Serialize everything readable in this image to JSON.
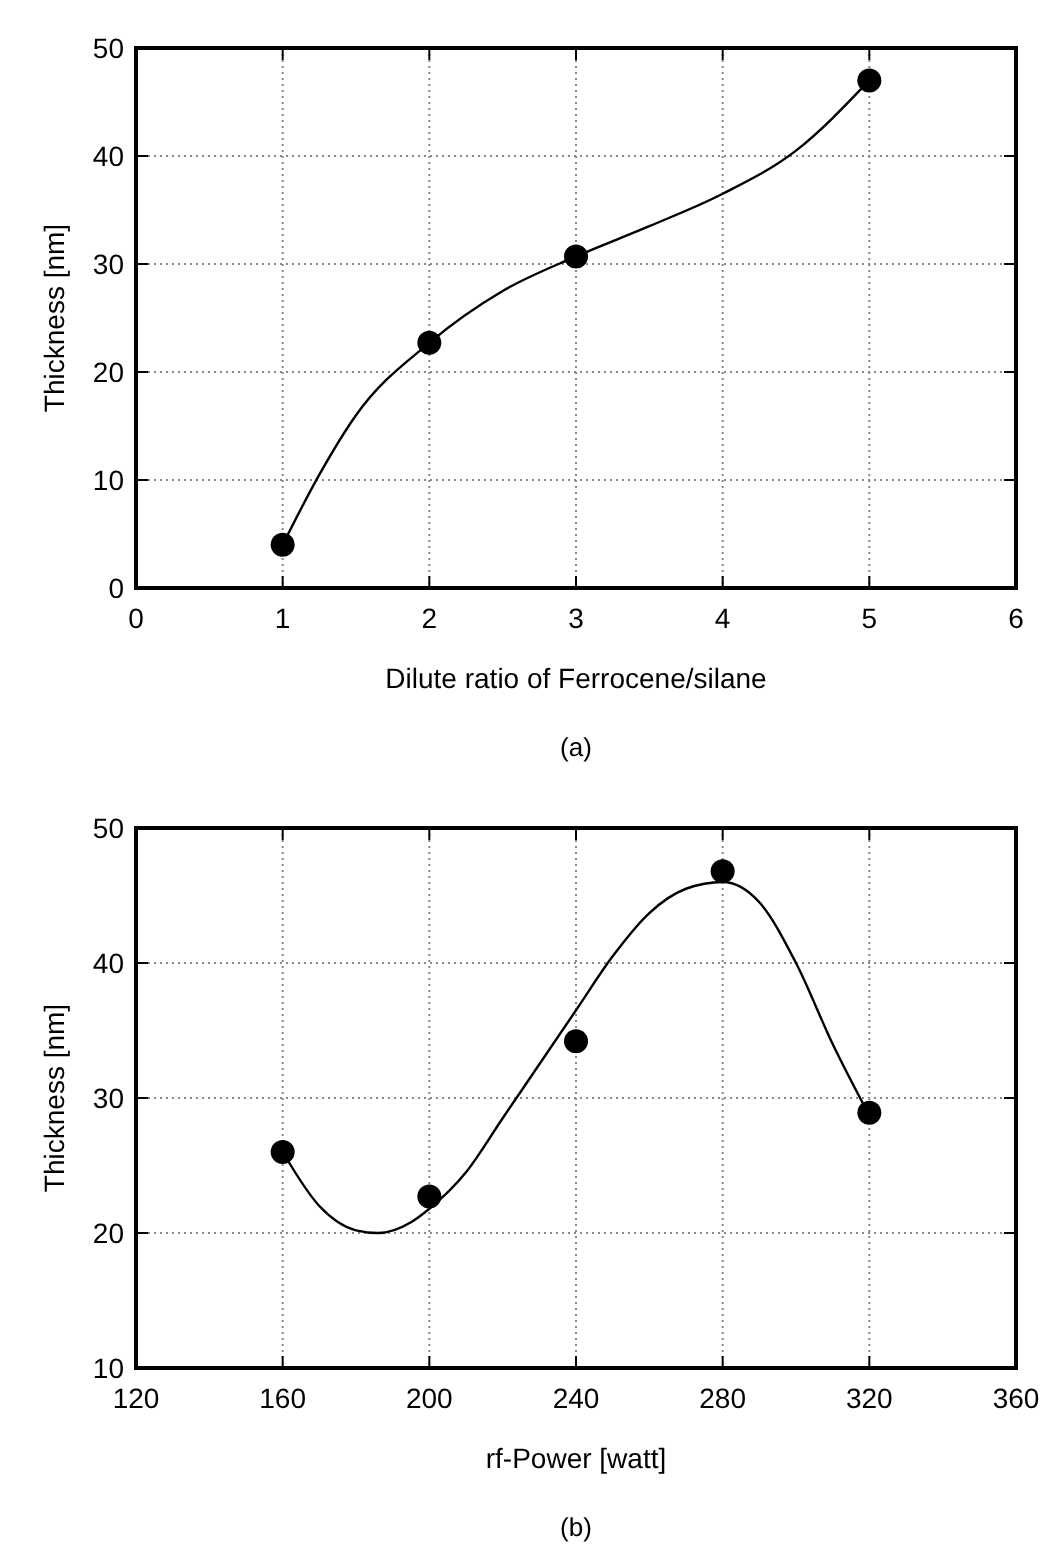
{
  "chart_data": [
    {
      "type": "scatter",
      "title": "(a)",
      "xlabel": "Dilute ratio of Ferrocene/silane",
      "ylabel": "Thickness [nm]",
      "xlim": [
        0,
        6
      ],
      "xticks": [
        0,
        1,
        2,
        3,
        4,
        5,
        6
      ],
      "ylim": [
        0,
        50
      ],
      "yticks": [
        0,
        10,
        20,
        30,
        40,
        50
      ],
      "grid": true,
      "series": [
        {
          "color": "#000000",
          "marker": "circle",
          "x": [
            1,
            2,
            3,
            5
          ],
          "values": [
            4,
            22.7,
            30.7,
            47
          ]
        },
        {
          "type": "line",
          "color": "#000000",
          "line_style": "solid",
          "marker": "none",
          "x": [
            1,
            1.25,
            1.5,
            2,
            2.5,
            3,
            3.5,
            4,
            4.5,
            5
          ],
          "values": [
            4,
            10.5,
            16,
            22.7,
            27.5,
            30.7,
            33.5,
            36.5,
            40.5,
            47
          ]
        }
      ]
    },
    {
      "type": "scatter",
      "title": "(b)",
      "xlabel": "rf-Power [watt]",
      "ylabel": "Thickness [nm]",
      "xlim": [
        120,
        360
      ],
      "xticks": [
        120,
        160,
        200,
        240,
        280,
        320,
        360
      ],
      "ylim": [
        10,
        50
      ],
      "yticks": [
        10,
        20,
        30,
        40,
        50
      ],
      "grid": true,
      "series": [
        {
          "color": "#000000",
          "marker": "circle",
          "x": [
            160,
            200,
            240,
            280,
            320
          ],
          "values": [
            26,
            22.7,
            34.2,
            46.8,
            28.9
          ]
        },
        {
          "type": "line",
          "color": "#000000",
          "line_style": "solid",
          "marker": "none",
          "x": [
            160,
            170,
            180,
            186,
            195,
            200,
            210,
            220,
            230,
            240,
            250,
            260,
            270,
            280,
            290,
            300,
            310,
            320
          ],
          "values": [
            26,
            22,
            20.2,
            20,
            20.8,
            21.8,
            24.5,
            28.5,
            32.5,
            36.5,
            40.5,
            43.7,
            45.5,
            46,
            44.5,
            40,
            34,
            28.7
          ]
        }
      ]
    }
  ]
}
